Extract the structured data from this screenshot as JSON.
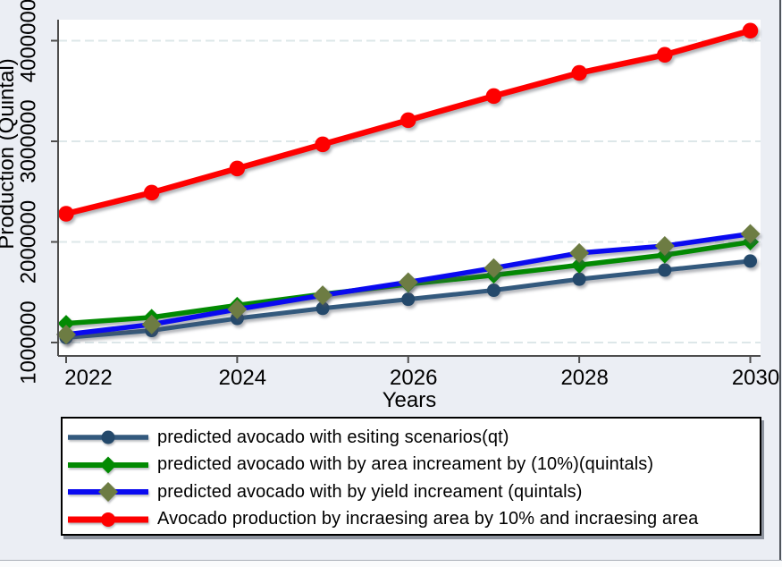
{
  "window": {
    "bg": "#ebeef4",
    "right_border_color": "#50555c",
    "bottom_line_color": "#aab0b8",
    "bottom_strip_color": "#fafbfc"
  },
  "colors": {
    "plot_bg": "#ffffff",
    "grid": "#dde7e9",
    "axis": "#4d4d4d",
    "text": "#000000",
    "legend_bg": "#ffffff",
    "legend_border": "#000000"
  },
  "chart_data": {
    "type": "line",
    "title": "",
    "xlabel": "Years",
    "ylabel": "Production (Quintal)",
    "x": [
      2022,
      2023,
      2024,
      2025,
      2026,
      2027,
      2028,
      2029,
      2030
    ],
    "x_ticks": [
      2022,
      2024,
      2026,
      2028,
      2030
    ],
    "y_ticks": [
      1000000,
      2000000,
      3000000,
      4000000
    ],
    "xlim": [
      2021.906,
      2030.12
    ],
    "ylim": [
      866800,
      4209000
    ],
    "grid": "horizontal-dashed",
    "legend_position": "bottom-box",
    "y_tick_labels_rotated": true,
    "series": [
      {
        "name": "predicted avocado with esiting scenarios(qt)",
        "color": "#33597d",
        "marker": "circle",
        "marker_color": "#24496b",
        "marker_size": 7.5,
        "line_width": 5,
        "values": [
          1050000,
          1120000,
          1240000,
          1340000,
          1430000,
          1520000,
          1630000,
          1720000,
          1810000
        ]
      },
      {
        "name": "predicted avocado with by area increament by (10%)(quintals)",
        "color": "#028a02",
        "marker": "diamond",
        "marker_color": "#028a02",
        "marker_size": 9.5,
        "line_width": 5.5,
        "values": [
          1190000,
          1250000,
          1370000,
          1480000,
          1580000,
          1670000,
          1770000,
          1870000,
          2000000
        ]
      },
      {
        "name": "predicted avocado with by yield  increament (quintals)",
        "color": "#0a0af0",
        "marker": "diamond",
        "marker_color": "#6d7c43",
        "marker_size": 11,
        "line_width": 5.5,
        "values": [
          1080000,
          1180000,
          1330000,
          1470000,
          1600000,
          1740000,
          1890000,
          1960000,
          2080000
        ]
      },
      {
        "name": "Avocado production by incraesing area by 10% and incraesing area",
        "color": "#fe0000",
        "marker": "circle",
        "marker_color": "#fe0000",
        "marker_size": 8.75,
        "line_width": 6.5,
        "values": [
          2280000,
          2490000,
          2730000,
          2970000,
          3210000,
          3450000,
          3680000,
          3860000,
          4100000
        ]
      }
    ]
  }
}
